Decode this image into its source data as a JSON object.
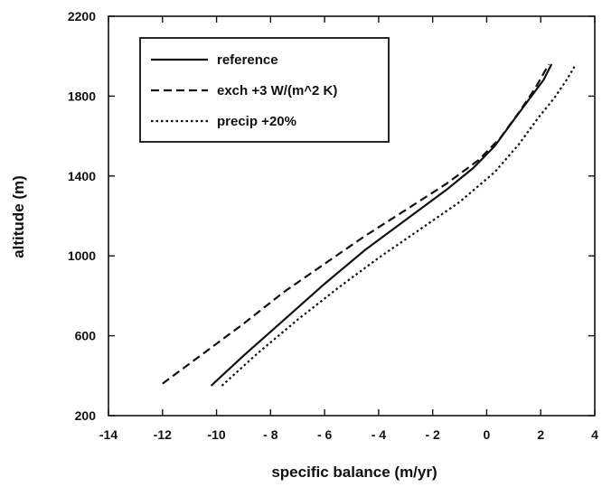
{
  "chart_data": {
    "type": "line",
    "title": "",
    "xlabel": "specific balance  (m/yr)",
    "ylabel": "altitude  (m)",
    "xlim": [
      -14,
      4
    ],
    "ylim": [
      200,
      2200
    ],
    "xticks": [
      -14,
      -12,
      -10,
      -8,
      -6,
      -4,
      -2,
      0,
      2,
      4
    ],
    "xtick_labels": [
      "-14",
      "-12",
      "-10",
      "- 8",
      "- 6",
      "- 4",
      "- 2",
      "0",
      "2",
      "4"
    ],
    "yticks": [
      200,
      600,
      1000,
      1400,
      1800,
      2200
    ],
    "ytick_labels": [
      "200",
      "600",
      "1000",
      "1400",
      "1800",
      "2200"
    ],
    "grid": false,
    "legend_position": "top-left",
    "series": [
      {
        "name": "reference",
        "style": "solid",
        "x": [
          -10.2,
          -9.0,
          -7.5,
          -6.0,
          -4.5,
          -3.0,
          -1.5,
          -0.5,
          0.3,
          1.0,
          1.6,
          2.1,
          2.4
        ],
        "y": [
          350,
          500,
          680,
          860,
          1030,
          1180,
          1330,
          1440,
          1550,
          1680,
          1790,
          1880,
          1960
        ]
      },
      {
        "name": "exch +3 W/(m^2 K)",
        "style": "dashed",
        "x": [
          -12.0,
          -10.5,
          -9.0,
          -7.5,
          -6.0,
          -4.5,
          -3.0,
          -1.5,
          -0.3,
          0.5,
          1.2,
          1.8,
          2.3
        ],
        "y": [
          360,
          510,
          660,
          820,
          960,
          1100,
          1230,
          1360,
          1480,
          1590,
          1720,
          1840,
          1960
        ]
      },
      {
        "name": "precip +20%",
        "style": "dotted",
        "x": [
          -9.8,
          -8.5,
          -7.0,
          -5.5,
          -4.0,
          -2.5,
          -1.0,
          0.3,
          1.2,
          1.9,
          2.5,
          3.0,
          3.3
        ],
        "y": [
          350,
          510,
          680,
          840,
          990,
          1130,
          1270,
          1420,
          1560,
          1690,
          1790,
          1890,
          1960
        ]
      }
    ]
  }
}
